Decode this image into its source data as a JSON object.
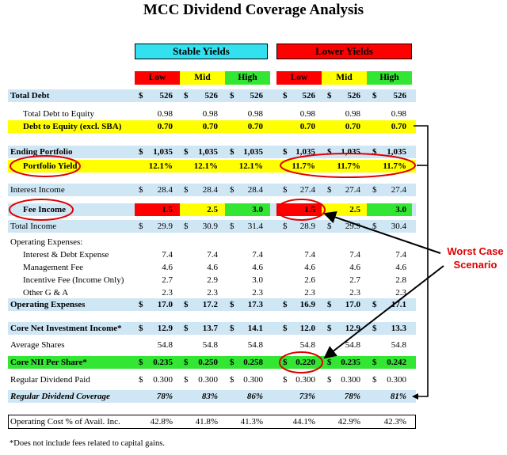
{
  "title": "MCC Dividend Coverage Analysis",
  "groups": {
    "stable": "Stable Yields",
    "lower": "Lower Yields"
  },
  "scenarios": [
    "Low",
    "Mid",
    "High"
  ],
  "colors": {
    "low": "#ff0000",
    "mid": "#ffff00",
    "high": "#33e633",
    "stable_header": "#33e0f0",
    "annotation": "#e00000",
    "row_band": "#cfe6f5"
  },
  "rows": [
    {
      "label": "Total Debt",
      "dollar": true,
      "values": [
        "526",
        "526",
        "526",
        "526",
        "526",
        "526"
      ]
    },
    {
      "label": "Total Debt to Equity",
      "dollar": false,
      "values": [
        "0.98",
        "0.98",
        "0.98",
        "0.98",
        "0.98",
        "0.98"
      ]
    },
    {
      "label": "Debt to Equity (excl. SBA)",
      "dollar": false,
      "values": [
        "0.70",
        "0.70",
        "0.70",
        "0.70",
        "0.70",
        "0.70"
      ]
    },
    {
      "label": "Ending Portfolio",
      "dollar": true,
      "values": [
        "1,035",
        "1,035",
        "1,035",
        "1,035",
        "1,035",
        "1,035"
      ]
    },
    {
      "label": "Portfolio Yield",
      "dollar": false,
      "values": [
        "12.1%",
        "12.1%",
        "12.1%",
        "11.7%",
        "11.7%",
        "11.7%"
      ]
    },
    {
      "label": "Interest Income",
      "dollar": true,
      "values": [
        "28.4",
        "28.4",
        "28.4",
        "27.4",
        "27.4",
        "27.4"
      ]
    },
    {
      "label": "Fee Income",
      "dollar": false,
      "values": [
        "1.5",
        "2.5",
        "3.0",
        "1.5",
        "2.5",
        "3.0"
      ]
    },
    {
      "label": "Total Income",
      "dollar": true,
      "values": [
        "29.9",
        "30.9",
        "31.4",
        "28.9",
        "29.9",
        "30.4"
      ]
    },
    {
      "label": "Operating Expenses:",
      "dollar": false,
      "values": []
    },
    {
      "label": "Interest & Debt Expense",
      "dollar": false,
      "values": [
        "7.4",
        "7.4",
        "7.4",
        "7.4",
        "7.4",
        "7.4"
      ]
    },
    {
      "label": "Management Fee",
      "dollar": false,
      "values": [
        "4.6",
        "4.6",
        "4.6",
        "4.6",
        "4.6",
        "4.6"
      ]
    },
    {
      "label": "Incentive Fee (Income Only)",
      "dollar": false,
      "values": [
        "2.7",
        "2.9",
        "3.0",
        "2.6",
        "2.7",
        "2.8"
      ]
    },
    {
      "label": "Other G & A",
      "dollar": false,
      "values": [
        "2.3",
        "2.3",
        "2.3",
        "2.3",
        "2.3",
        "2.3"
      ]
    },
    {
      "label": "Operating Expenses",
      "dollar": true,
      "values": [
        "17.0",
        "17.2",
        "17.3",
        "16.9",
        "17.0",
        "17.1"
      ]
    },
    {
      "label": "Core Net Investment Income*",
      "dollar": true,
      "values": [
        "12.9",
        "13.7",
        "14.1",
        "12.0",
        "12.9",
        "13.3"
      ]
    },
    {
      "label": "Average Shares",
      "dollar": false,
      "values": [
        "54.8",
        "54.8",
        "54.8",
        "54.8",
        "54.8",
        "54.8"
      ]
    },
    {
      "label": "Core NII Per Share*",
      "dollar": true,
      "values": [
        "0.235",
        "0.250",
        "0.258",
        "0.220",
        "0.235",
        "0.242"
      ]
    },
    {
      "label": "Regular Dividend Paid",
      "dollar": true,
      "values": [
        "0.300",
        "0.300",
        "0.300",
        "0.300",
        "0.300",
        "0.300"
      ]
    },
    {
      "label": "Regular Dividend Coverage",
      "dollar": false,
      "values": [
        "78%",
        "83%",
        "86%",
        "73%",
        "78%",
        "81%"
      ]
    },
    {
      "label": "Operating Cost % of Avail. Inc.",
      "dollar": false,
      "values": [
        "42.8%",
        "41.8%",
        "41.3%",
        "44.1%",
        "42.9%",
        "42.3%"
      ]
    }
  ],
  "currency": "$",
  "annotation": {
    "line1": "Worst Case",
    "line2": "Scenario"
  },
  "footnote": "*Does not include fees related to capital gains."
}
